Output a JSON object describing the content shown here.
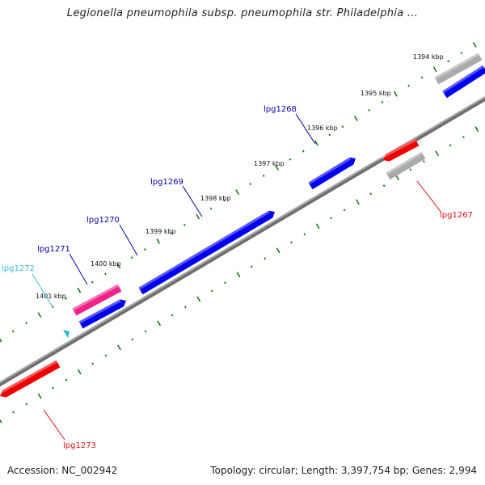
{
  "title": "Legionella pneumophila subsp. pneumophila str. Philadelphia ...",
  "footer": {
    "accession": "Accession: NC_002942",
    "summary": "Topology: circular; Length: 3,397,754 bp; Genes: 2,994"
  },
  "colors": {
    "backbone": "#888888",
    "tick": "#1a7a1a",
    "forward_gene": "#0000ee",
    "reverse_gene": "#ee0000",
    "rna_gene": "#ee2288",
    "pseudo_gene": "#aaaaaa",
    "small_gene": "#22bbdd"
  },
  "kbp_labels": [
    "1394 kbp",
    "1395 kbp",
    "1396 kbp",
    "1397 kbp",
    "1398 kbp",
    "1399 kbp",
    "1400 kbp",
    "1401 kbp"
  ],
  "genes": [
    {
      "name": "lpg1267",
      "strand": "reverse",
      "color": "#dd1111"
    },
    {
      "name": "lpg1268",
      "strand": "forward",
      "color": "#0000aa"
    },
    {
      "name": "lpg1269",
      "strand": "forward",
      "color": "#0000aa"
    },
    {
      "name": "lpg1270",
      "strand": "forward",
      "color": "#0000aa"
    },
    {
      "name": "lpg1271",
      "strand": "forward",
      "color": "#0000aa"
    },
    {
      "name": "lpg1272",
      "strand": "forward",
      "color": "#33bbdd"
    },
    {
      "name": "lpg1273",
      "strand": "reverse",
      "color": "#dd1111"
    }
  ]
}
